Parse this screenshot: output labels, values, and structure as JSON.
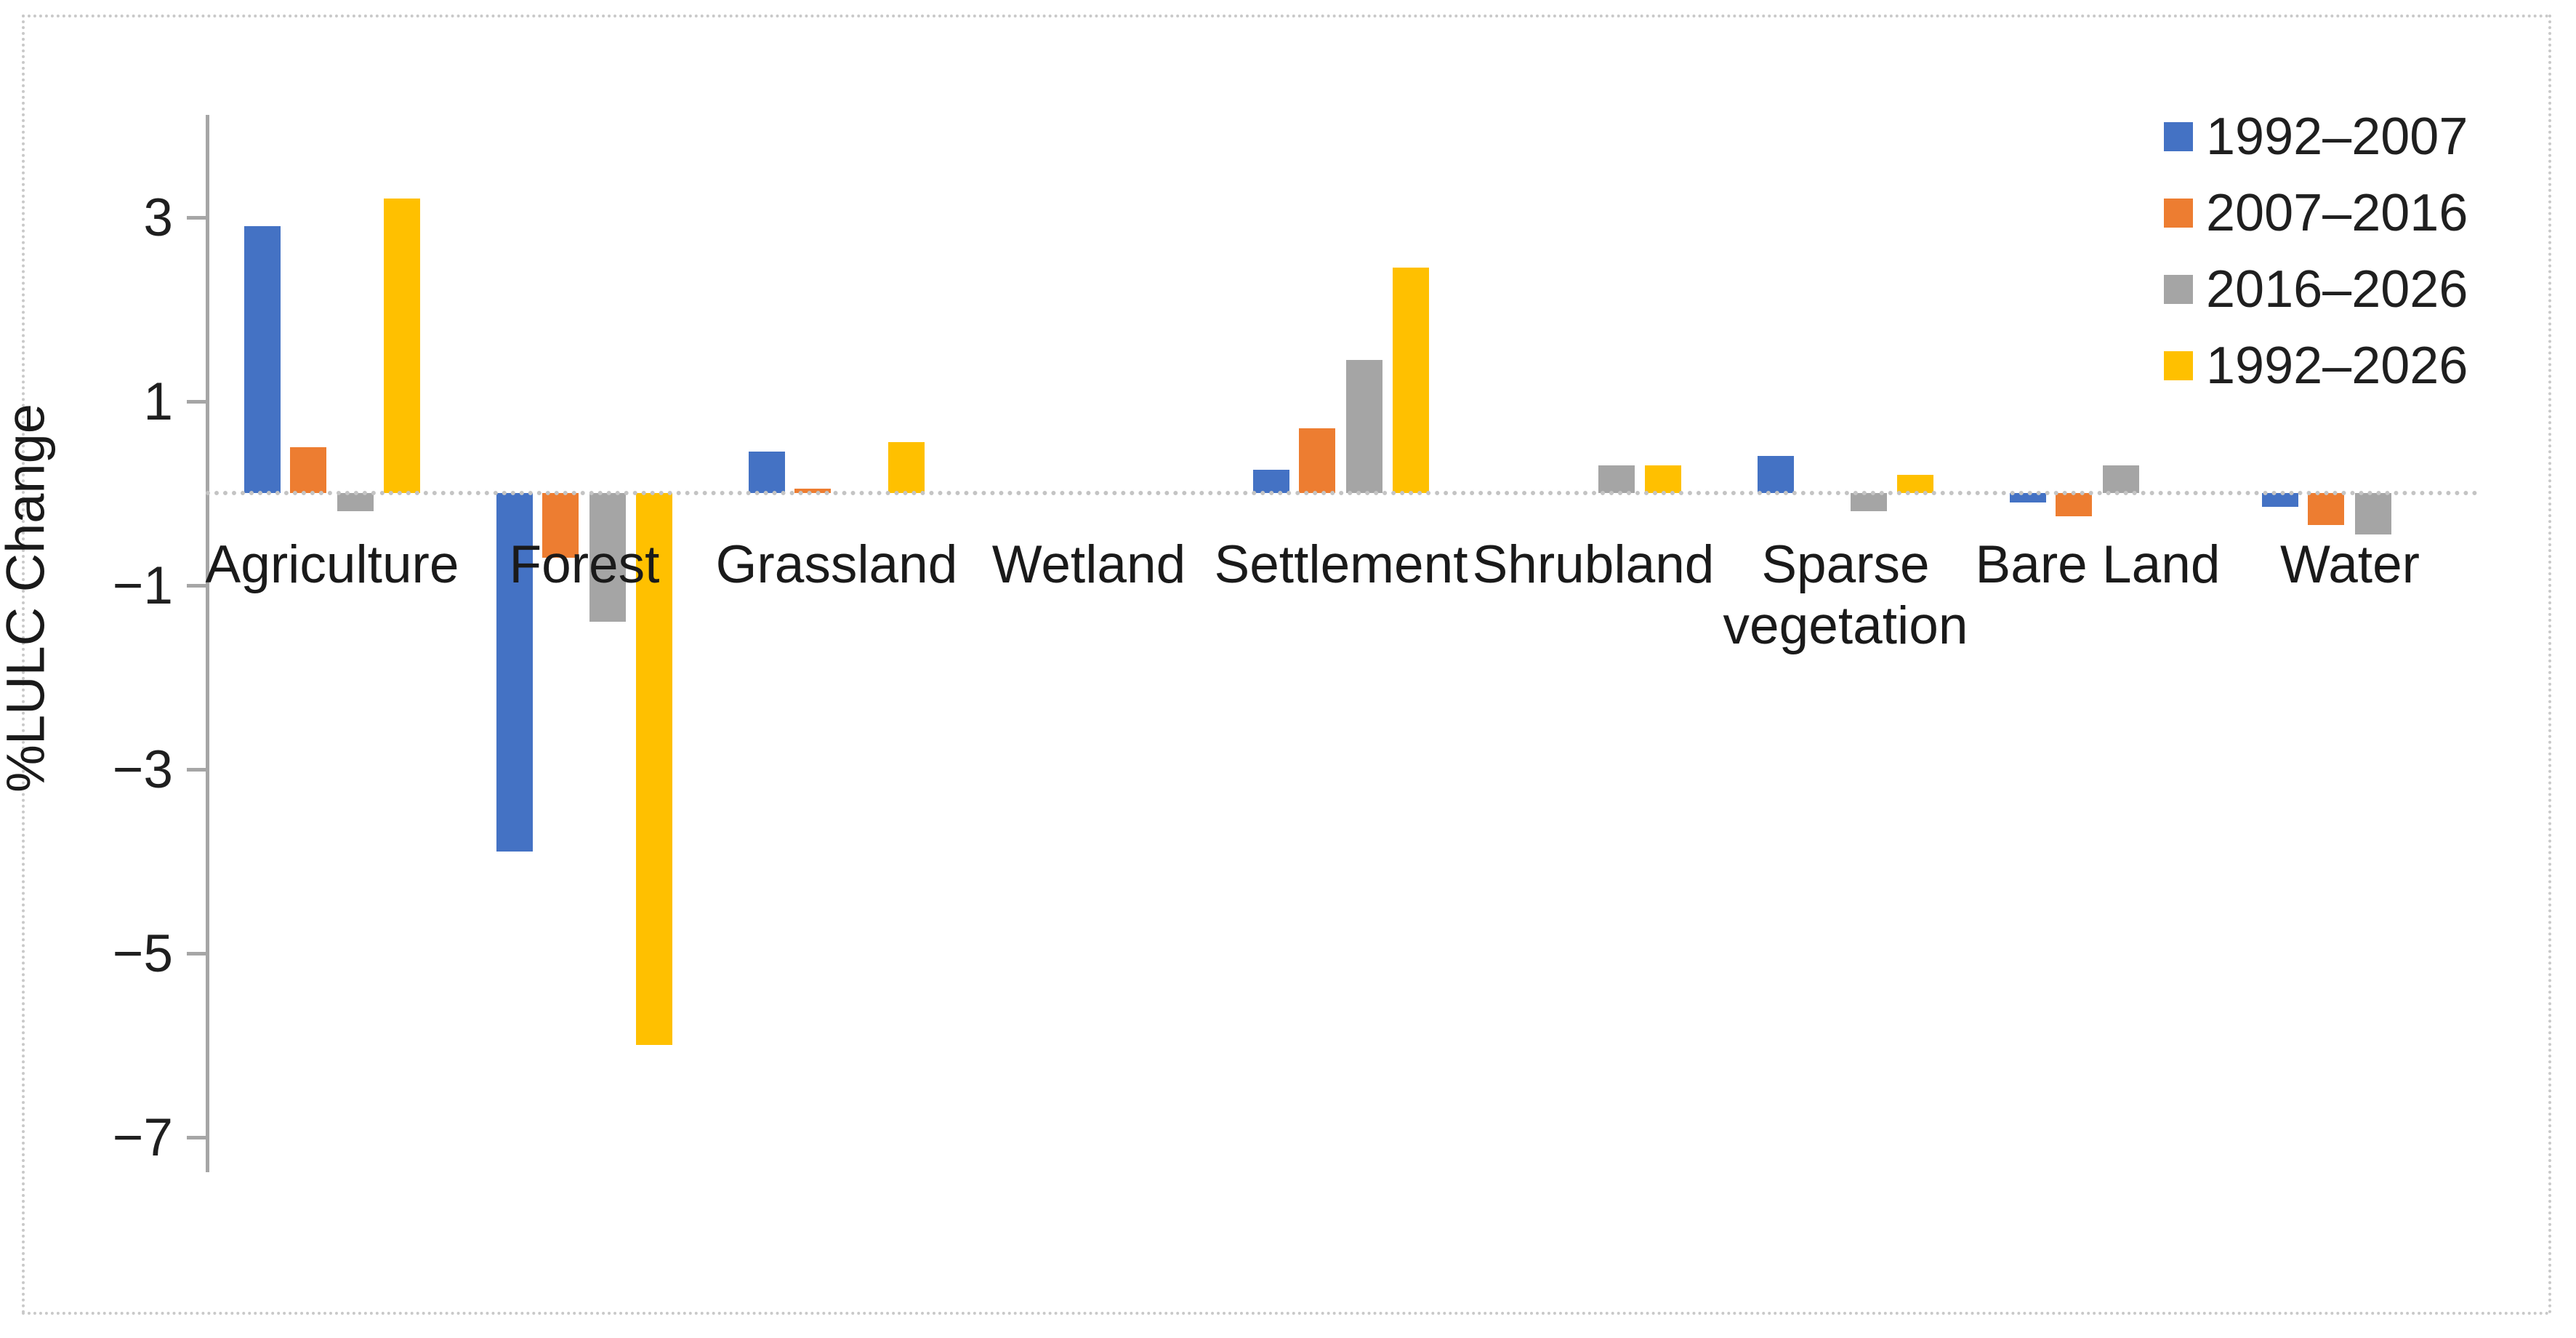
{
  "chart_data": {
    "type": "bar",
    "title": "",
    "xlabel": "",
    "ylabel": "%LULC Change",
    "categories": [
      "Agriculture",
      "Forest",
      "Grassland",
      "Wetland",
      "Settlement",
      "Shrubland",
      "Sparse vegetation",
      "Bare Land",
      "Water"
    ],
    "series": [
      {
        "name": "1992–2007",
        "color": "#4472C4",
        "pattern": "solid",
        "values": [
          2.9,
          -3.9,
          0.45,
          0,
          0.25,
          0,
          0.4,
          -0.1,
          -0.15
        ]
      },
      {
        "name": "2007–2016",
        "color": "#ED7D31",
        "pattern": "solid",
        "values": [
          0.5,
          -0.7,
          0.05,
          0,
          0.7,
          0,
          0,
          -0.25,
          -0.35
        ]
      },
      {
        "name": "2016–2026",
        "color": "#A5A5A5",
        "pattern": "dotted",
        "values": [
          -0.2,
          -1.4,
          0,
          0,
          1.45,
          0.3,
          -0.2,
          0.3,
          -0.45
        ]
      },
      {
        "name": "1992–2026",
        "color": "#FFC000",
        "pattern": "solid",
        "values": [
          3.2,
          -6.0,
          0.55,
          0,
          2.45,
          0.3,
          0.2,
          0,
          0
        ]
      }
    ],
    "y_ticks": [
      3,
      1,
      -1,
      -3,
      -5,
      -7
    ],
    "ylim": [
      -7.3,
      4.1
    ],
    "grid": false,
    "legend_position": "top-right",
    "zero_axis_line": true
  }
}
